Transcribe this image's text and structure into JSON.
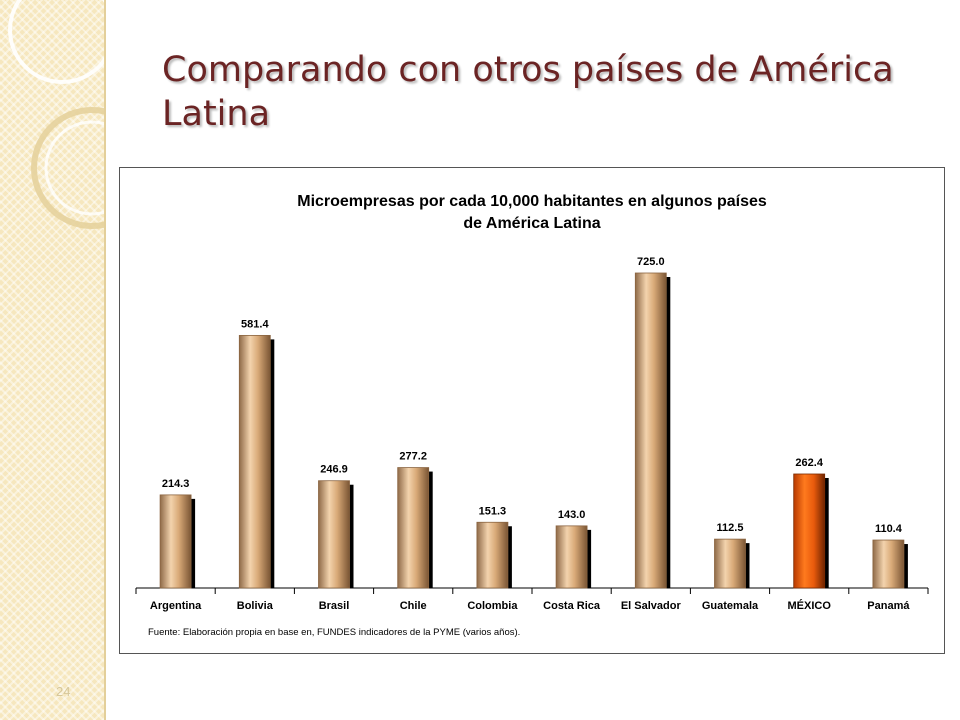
{
  "slide": {
    "title": "Comparando con otros países de América Latina",
    "page_number": "24"
  },
  "chart_data": {
    "type": "bar",
    "title": "Microempresas por cada 10,000 habitantes en algunos países de América Latina",
    "title_lines": [
      "Microempresas por cada 10,000 habitantes en algunos países",
      "de América Latina"
    ],
    "categories": [
      "Argentina",
      "Bolivia",
      "Brasil",
      "Chile",
      "Colombia",
      "Costa Rica",
      "El Salvador",
      "Guatemala",
      "MÉXICO",
      "Panamá"
    ],
    "values": [
      214.3,
      581.4,
      246.9,
      277.2,
      151.3,
      143.0,
      725.0,
      112.5,
      262.4,
      110.4
    ],
    "data_labels": [
      "214.3",
      "581.4",
      "246.9",
      "277.2",
      "151.3",
      "143.0",
      "725.0",
      "112.5",
      "262.4",
      "110.4"
    ],
    "highlight": "MÉXICO",
    "ylim": [
      0,
      800
    ],
    "grid": false,
    "legend": "none",
    "source_note": "Fuente: Elaboración propia en base en, FUNDES indicadores de la PYME (varios años).",
    "colors": {
      "bar": "#d9aa78",
      "bar_edge": "#8a6440",
      "bar_highlight": "#e85a0c",
      "bar_highlight_edge": "#7a2a00",
      "shadow": "#000000"
    }
  }
}
